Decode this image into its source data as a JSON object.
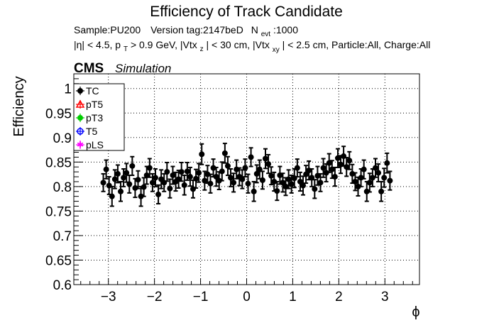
{
  "chart_data": {
    "type": "scatter",
    "title": "Efficiency of Track Candidate",
    "subtitle_line1": {
      "sample": "Sample:PU200",
      "version": "Version tag:2147beD",
      "n_label": "N",
      "n_sub": "evt",
      "n_value": ":1000"
    },
    "subtitle_line2": {
      "eta": "|η| < 4.5, p",
      "pt_sub": "T",
      "pt_cut": " > 0.9 GeV, |Vtx",
      "z_sub": "z",
      "z_cut": "| < 30 cm, |Vtx",
      "xy_sub": "xy",
      "rest": "| < 2.5 cm, Particle:All, Charge:All"
    },
    "cms_label": "CMS",
    "simulation_label": "Simulation",
    "xlabel": "ϕ",
    "ylabel": "Efficiency",
    "xlim": [
      -3.75,
      3.75
    ],
    "ylim": [
      0.6,
      1.03
    ],
    "xticks": [
      -3,
      -2,
      -1,
      0,
      1,
      2,
      3
    ],
    "xtick_labels": [
      "−3",
      "−2",
      "−1",
      "0",
      "1",
      "2",
      "3"
    ],
    "yticks": [
      0.6,
      0.65,
      0.7,
      0.75,
      0.8,
      0.85,
      0.9,
      0.95,
      1.0
    ],
    "ytick_labels": [
      "0.6",
      "0.65",
      "0.7",
      "0.75",
      "0.8",
      "0.85",
      "0.9",
      "0.95",
      "1"
    ],
    "grid": true,
    "legend_position": "top-left",
    "legend": [
      {
        "label": "TC",
        "color": "#000000",
        "marker": "circle"
      },
      {
        "label": "pT5",
        "color": "#ff0000",
        "marker": "triangle"
      },
      {
        "label": "pT3",
        "color": "#00cc00",
        "marker": "circle"
      },
      {
        "label": "T5",
        "color": "#0000ff",
        "marker": "circle-open"
      },
      {
        "label": "pLS",
        "color": "#ff00ff",
        "marker": "star"
      }
    ],
    "series": [
      {
        "name": "TC",
        "color": "#000000",
        "x": [
          -3.1101,
          -3.0473,
          -2.9845,
          -2.9216,
          -2.8588,
          -2.796,
          -2.7332,
          -2.6704,
          -2.6075,
          -2.5447,
          -2.4819,
          -2.4191,
          -2.3562,
          -2.2934,
          -2.2306,
          -2.1678,
          -2.105,
          -2.0421,
          -1.9793,
          -1.9165,
          -1.8537,
          -1.7909,
          -1.728,
          -1.6652,
          -1.6024,
          -1.5396,
          -1.4768,
          -1.4139,
          -1.3511,
          -1.2883,
          -1.2255,
          -1.1627,
          -1.0998,
          -1.037,
          -0.9742,
          -0.9114,
          -0.8485,
          -0.7857,
          -0.7229,
          -0.6601,
          -0.5973,
          -0.5344,
          -0.4716,
          -0.4088,
          -0.346,
          -0.2832,
          -0.2203,
          -0.1575,
          -0.0947,
          -0.0319,
          0.0309,
          0.0938,
          0.1566,
          0.2194,
          0.2822,
          0.3451,
          0.4079,
          0.4707,
          0.5335,
          0.5963,
          0.6592,
          0.722,
          0.7848,
          0.8476,
          0.9104,
          0.9733,
          1.0361,
          1.0989,
          1.1617,
          1.2245,
          1.2874,
          1.3502,
          1.413,
          1.4758,
          1.5386,
          1.6015,
          1.6643,
          1.7271,
          1.7899,
          1.8527,
          1.9156,
          1.9784,
          2.0412,
          2.104,
          2.1669,
          2.2297,
          2.2925,
          2.3553,
          2.4181,
          2.481,
          2.5438,
          2.6066,
          2.6694,
          2.7322,
          2.7951,
          2.8579,
          2.9207,
          2.9835,
          3.0463,
          3.1092
        ],
        "y": [
          0.808,
          0.835,
          0.802,
          0.78,
          0.815,
          0.826,
          0.79,
          0.818,
          0.828,
          0.805,
          0.842,
          0.797,
          0.814,
          0.78,
          0.799,
          0.823,
          0.838,
          0.808,
          0.818,
          0.784,
          0.815,
          0.808,
          0.83,
          0.796,
          0.823,
          0.81,
          0.815,
          0.83,
          0.803,
          0.831,
          0.82,
          0.795,
          0.816,
          0.828,
          0.866,
          0.812,
          0.825,
          0.806,
          0.838,
          0.82,
          0.812,
          0.831,
          0.868,
          0.842,
          0.818,
          0.808,
          0.835,
          0.82,
          0.815,
          0.838,
          0.806,
          0.86,
          0.79,
          0.826,
          0.835,
          0.813,
          0.857,
          0.846,
          0.822,
          0.81,
          0.791,
          0.823,
          0.808,
          0.8,
          0.815,
          0.805,
          0.817,
          0.838,
          0.81,
          0.802,
          0.825,
          0.833,
          0.818,
          0.795,
          0.822,
          0.808,
          0.838,
          0.828,
          0.848,
          0.835,
          0.82,
          0.858,
          0.845,
          0.862,
          0.84,
          0.853,
          0.826,
          0.81,
          0.8,
          0.818,
          0.835,
          0.79,
          0.808,
          0.818,
          0.838,
          0.828,
          0.79,
          0.818,
          0.848,
          0.812
        ],
        "yerr": [
          0.018,
          0.019,
          0.018,
          0.02,
          0.019,
          0.018,
          0.02,
          0.018,
          0.019,
          0.018,
          0.019,
          0.019,
          0.018,
          0.02,
          0.019,
          0.018,
          0.019,
          0.018,
          0.018,
          0.019,
          0.019,
          0.018,
          0.019,
          0.019,
          0.018,
          0.019,
          0.018,
          0.019,
          0.02,
          0.018,
          0.019,
          0.018,
          0.019,
          0.019,
          0.021,
          0.019,
          0.018,
          0.019,
          0.018,
          0.019,
          0.018,
          0.019,
          0.02,
          0.019,
          0.018,
          0.019,
          0.019,
          0.018,
          0.019,
          0.018,
          0.019,
          0.019,
          0.02,
          0.018,
          0.019,
          0.018,
          0.02,
          0.019,
          0.018,
          0.019,
          0.019,
          0.018,
          0.019,
          0.018,
          0.019,
          0.018,
          0.019,
          0.018,
          0.019,
          0.019,
          0.018,
          0.019,
          0.018,
          0.019,
          0.019,
          0.018,
          0.019,
          0.018,
          0.019,
          0.018,
          0.019,
          0.019,
          0.018,
          0.02,
          0.019,
          0.018,
          0.019,
          0.018,
          0.019,
          0.018,
          0.019,
          0.02,
          0.019,
          0.018,
          0.019,
          0.018,
          0.02,
          0.019,
          0.02,
          0.019
        ]
      }
    ]
  }
}
